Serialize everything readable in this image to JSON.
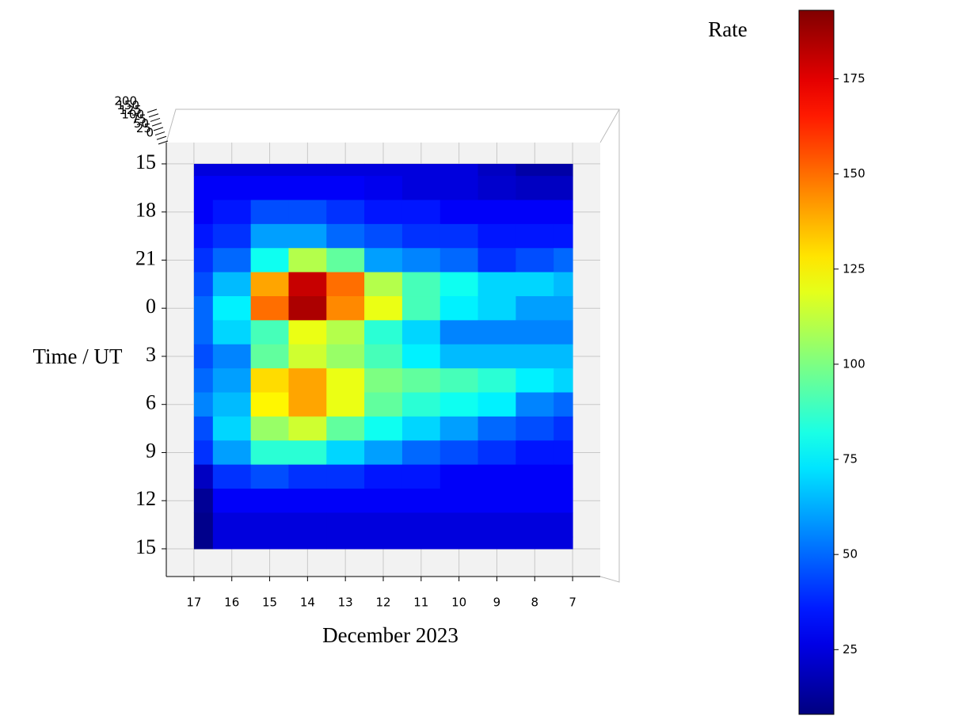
{
  "chart_data": {
    "type": "heatmap",
    "xlabel": "December 2023",
    "ylabel": "Time / UT",
    "colorbar_label": "Rate",
    "colormap": "jet",
    "x": [
      17,
      16,
      15,
      14,
      13,
      12,
      11,
      10,
      9,
      8,
      7
    ],
    "y": [
      15,
      16.5,
      18,
      19.5,
      21,
      22.5,
      24,
      25.5,
      27,
      28.5,
      30,
      31.5,
      33,
      34.5,
      36,
      37.5,
      39
    ],
    "z": [
      [
        25,
        25,
        25,
        25,
        25,
        25,
        25,
        25,
        20,
        15,
        15
      ],
      [
        30,
        30,
        30,
        30,
        30,
        28,
        25,
        25,
        22,
        20,
        20
      ],
      [
        30,
        35,
        45,
        45,
        40,
        35,
        35,
        30,
        30,
        30,
        30
      ],
      [
        35,
        40,
        60,
        60,
        50,
        45,
        40,
        40,
        35,
        35,
        35
      ],
      [
        40,
        50,
        80,
        110,
        95,
        60,
        55,
        50,
        40,
        45,
        50
      ],
      [
        45,
        65,
        140,
        180,
        150,
        110,
        90,
        80,
        70,
        70,
        65
      ],
      [
        50,
        75,
        150,
        185,
        145,
        120,
        90,
        75,
        70,
        60,
        60
      ],
      [
        50,
        70,
        90,
        120,
        110,
        85,
        70,
        55,
        55,
        55,
        55
      ],
      [
        45,
        55,
        95,
        115,
        105,
        90,
        75,
        65,
        65,
        65,
        65
      ],
      [
        50,
        60,
        130,
        140,
        120,
        100,
        95,
        90,
        85,
        75,
        70
      ],
      [
        55,
        65,
        125,
        140,
        120,
        95,
        85,
        80,
        75,
        55,
        50
      ],
      [
        45,
        70,
        105,
        115,
        95,
        80,
        70,
        60,
        50,
        45,
        40
      ],
      [
        40,
        60,
        85,
        85,
        70,
        60,
        50,
        45,
        40,
        35,
        35
      ],
      [
        20,
        40,
        45,
        40,
        40,
        35,
        35,
        30,
        30,
        30,
        30
      ],
      [
        12,
        30,
        30,
        30,
        30,
        30,
        30,
        30,
        30,
        30,
        30
      ],
      [
        10,
        25,
        25,
        25,
        25,
        25,
        25,
        25,
        25,
        25,
        25
      ],
      [
        10,
        25,
        25,
        25,
        25,
        25,
        25,
        25,
        25,
        25,
        25
      ]
    ],
    "xlim": [
      17.73,
      6.27
    ],
    "ylim": [
      13.67,
      40.73
    ],
    "xticks": [
      17,
      16,
      15,
      14,
      13,
      12,
      11,
      10,
      9,
      8,
      7
    ],
    "yticks": [
      15,
      18,
      21,
      {
        "value": 24,
        "label": "0"
      },
      {
        "value": 27,
        "label": "3"
      },
      {
        "value": 30,
        "label": "6"
      },
      {
        "value": 33,
        "label": "9"
      },
      {
        "value": 36,
        "label": "12"
      },
      {
        "value": 39,
        "label": "15"
      }
    ],
    "zlim": [
      8,
      193
    ],
    "zticks": [
      25,
      50,
      75,
      100,
      125,
      150,
      175
    ],
    "zaxis_ticks": [
      0,
      25,
      50,
      75,
      100,
      125,
      150,
      200
    ],
    "grid": true
  }
}
